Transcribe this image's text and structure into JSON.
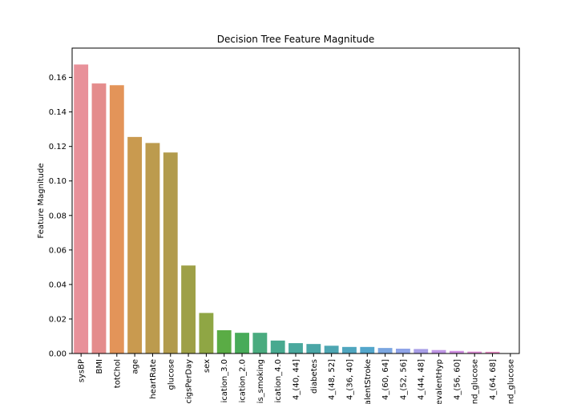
{
  "chart_data": {
    "type": "bar",
    "title": "Decision Tree Feature Magnitude",
    "xlabel": "",
    "ylabel": "Feature Magnitude",
    "ylim": [
      0,
      0.177
    ],
    "yticks": [
      0.0,
      0.02,
      0.04,
      0.06,
      0.08,
      0.1,
      0.12,
      0.14,
      0.16
    ],
    "ytick_labels": [
      "0.00",
      "0.02",
      "0.04",
      "0.06",
      "0.08",
      "0.10",
      "0.12",
      "0.14",
      "0.16"
    ],
    "grid": false,
    "legend": "none",
    "categories": [
      "sysBP",
      "BMI",
      "totChol",
      "age",
      "heartRate",
      "glucose",
      "cigsPerDay",
      "sex",
      "ication_3.0",
      "ication_2.0",
      "is_smoking",
      "ication_4.0",
      "4_(40, 44]",
      "diabetes",
      "4_(48, 52]",
      "4_(36, 40]",
      "alentStroke",
      "4_(60, 64]",
      "4_(52, 56]",
      "4_(44, 48]",
      "evalentHyp",
      "4_(56, 60]",
      "nd_glucose",
      "4_(64, 68]",
      "nd_glucose"
    ],
    "values": [
      0.1675,
      0.1565,
      0.1555,
      0.1255,
      0.122,
      0.1165,
      0.051,
      0.0235,
      0.0135,
      0.012,
      0.012,
      0.0075,
      0.006,
      0.0055,
      0.0045,
      0.0038,
      0.0038,
      0.0032,
      0.0028,
      0.0026,
      0.002,
      0.0015,
      0.0011,
      0.001,
      0.0002
    ],
    "colors": [
      "#e8919a",
      "#e48c8c",
      "#e39459",
      "#c99a4f",
      "#bc9b4e",
      "#b29b4c",
      "#9ea047",
      "#8fa644",
      "#5aac45",
      "#48ab59",
      "#4aab7f",
      "#48a98f",
      "#4aa89d",
      "#4aa6a6",
      "#4da6b2",
      "#4fa6bf",
      "#53a6cb",
      "#7ba6e0",
      "#8fa4e8",
      "#a89ee7",
      "#bf96e5",
      "#d08ee2",
      "#e08ed8",
      "#e78cc4",
      "#e891b0"
    ]
  }
}
